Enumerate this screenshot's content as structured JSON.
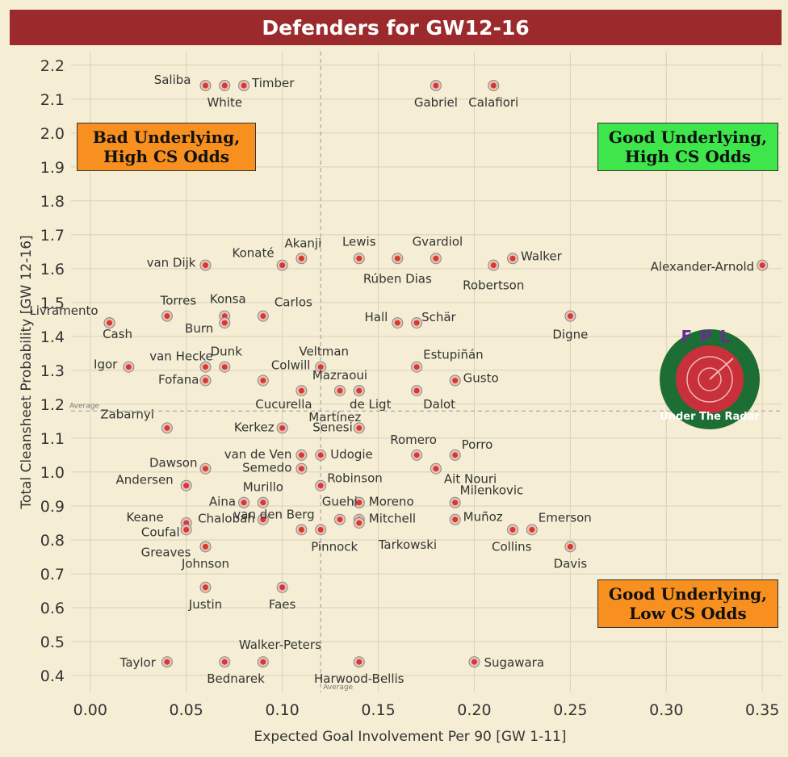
{
  "title": "Defenders for GW12-16",
  "callouts": {
    "bad_high": [
      "Bad Underlying,",
      "High CS Odds"
    ],
    "good_high": [
      "Good Underlying,",
      "High CS Odds"
    ],
    "good_low": [
      "Good Underlying,",
      "Low CS Odds"
    ]
  },
  "logo_text": "Under The Radar",
  "logo_letters": "FPL",
  "colors": {
    "title_bg": "#9c2a2c",
    "point": "#d8392f",
    "orange": "#f7901e",
    "green": "#3ee64c"
  },
  "chart_data": {
    "type": "scatter",
    "title": "Defenders for GW12-16",
    "xlabel": "Expected Goal Involvement Per 90 [GW 1-11]",
    "ylabel": "Total Cleansheet Probability [GW 12-16]",
    "xlim": [
      -0.01,
      0.36
    ],
    "ylim": [
      0.35,
      2.24
    ],
    "xticks": [
      "0.00",
      "0.05",
      "0.10",
      "0.15",
      "0.20",
      "0.25",
      "0.30",
      "0.35"
    ],
    "yticks": [
      "0.4",
      "0.5",
      "0.6",
      "0.7",
      "0.8",
      "0.9",
      "1.0",
      "1.1",
      "1.2",
      "1.3",
      "1.4",
      "1.5",
      "1.6",
      "1.7",
      "1.8",
      "1.9",
      "2.0",
      "2.1",
      "2.2"
    ],
    "average_x": 0.12,
    "average_y": 1.18,
    "average_label": "Average",
    "points": [
      {
        "name": "Saliba",
        "x": 0.06,
        "y": 2.14
      },
      {
        "name": "White",
        "x": 0.07,
        "y": 2.14
      },
      {
        "name": "Timber",
        "x": 0.08,
        "y": 2.14
      },
      {
        "name": "Gabriel",
        "x": 0.18,
        "y": 2.14
      },
      {
        "name": "Calafiori",
        "x": 0.21,
        "y": 2.14
      },
      {
        "name": "van Dijk",
        "x": 0.06,
        "y": 1.61
      },
      {
        "name": "Konaté",
        "x": 0.1,
        "y": 1.61
      },
      {
        "name": "Akanji",
        "x": 0.11,
        "y": 1.63
      },
      {
        "name": "Lewis",
        "x": 0.14,
        "y": 1.63
      },
      {
        "name": "Rúben Dias",
        "x": 0.16,
        "y": 1.63
      },
      {
        "name": "Gvardiol",
        "x": 0.18,
        "y": 1.63
      },
      {
        "name": "Robertson",
        "x": 0.21,
        "y": 1.61
      },
      {
        "name": "Walker",
        "x": 0.22,
        "y": 1.63
      },
      {
        "name": "Alexander-Arnold",
        "x": 0.35,
        "y": 1.61
      },
      {
        "name": "Livramento",
        "x": 0.01,
        "y": 1.44
      },
      {
        "name": "Cash",
        "x": 0.01,
        "y": 1.44
      },
      {
        "name": "Torres",
        "x": 0.04,
        "y": 1.46
      },
      {
        "name": "Konsa",
        "x": 0.07,
        "y": 1.46
      },
      {
        "name": "Burn",
        "x": 0.07,
        "y": 1.44
      },
      {
        "name": "Carlos",
        "x": 0.09,
        "y": 1.46
      },
      {
        "name": "Hall",
        "x": 0.16,
        "y": 1.44
      },
      {
        "name": "Schär",
        "x": 0.17,
        "y": 1.44
      },
      {
        "name": "Digne",
        "x": 0.25,
        "y": 1.46
      },
      {
        "name": "Igor",
        "x": 0.02,
        "y": 1.31
      },
      {
        "name": "van Hecke",
        "x": 0.06,
        "y": 1.31
      },
      {
        "name": "Dunk",
        "x": 0.07,
        "y": 1.31
      },
      {
        "name": "Fofana",
        "x": 0.06,
        "y": 1.27
      },
      {
        "name": "Colwill",
        "x": 0.09,
        "y": 1.27
      },
      {
        "name": "Veltman",
        "x": 0.12,
        "y": 1.31
      },
      {
        "name": "Cucurella",
        "x": 0.11,
        "y": 1.24
      },
      {
        "name": "Mazraoui",
        "x": 0.13,
        "y": 1.24
      },
      {
        "name": "Martínez",
        "x": 0.14,
        "y": 1.24
      },
      {
        "name": "de Ligt",
        "x": 0.14,
        "y": 1.24
      },
      {
        "name": "Estupiñán",
        "x": 0.17,
        "y": 1.31
      },
      {
        "name": "Dalot",
        "x": 0.17,
        "y": 1.24
      },
      {
        "name": "Gusto",
        "x": 0.19,
        "y": 1.27
      },
      {
        "name": "Zabarnyi",
        "x": 0.04,
        "y": 1.13
      },
      {
        "name": "Kerkez",
        "x": 0.1,
        "y": 1.13
      },
      {
        "name": "Senesi",
        "x": 0.14,
        "y": 1.13
      },
      {
        "name": "van de Ven",
        "x": 0.11,
        "y": 1.05
      },
      {
        "name": "Udogie",
        "x": 0.12,
        "y": 1.05
      },
      {
        "name": "Semedo",
        "x": 0.11,
        "y": 1.01
      },
      {
        "name": "Dawson",
        "x": 0.06,
        "y": 1.01
      },
      {
        "name": "Romero",
        "x": 0.17,
        "y": 1.05
      },
      {
        "name": "Porro",
        "x": 0.19,
        "y": 1.05
      },
      {
        "name": "Ait Nouri",
        "x": 0.18,
        "y": 1.01
      },
      {
        "name": "Andersen",
        "x": 0.05,
        "y": 0.96
      },
      {
        "name": "Robinson",
        "x": 0.12,
        "y": 0.96
      },
      {
        "name": "Murillo",
        "x": 0.09,
        "y": 0.91
      },
      {
        "name": "Aina",
        "x": 0.08,
        "y": 0.91
      },
      {
        "name": "Guehi",
        "x": 0.14,
        "y": 0.91
      },
      {
        "name": "Moreno",
        "x": 0.14,
        "y": 0.91
      },
      {
        "name": "Milenkovic",
        "x": 0.19,
        "y": 0.91
      },
      {
        "name": "Keane",
        "x": 0.05,
        "y": 0.85
      },
      {
        "name": "Coufal",
        "x": 0.05,
        "y": 0.83
      },
      {
        "name": "Chalobah",
        "x": 0.09,
        "y": 0.86
      },
      {
        "name": "Mitchell",
        "x": 0.14,
        "y": 0.86
      },
      {
        "name": "Tarkowski",
        "x": 0.14,
        "y": 0.85
      },
      {
        "name": "Pinnock",
        "x": 0.12,
        "y": 0.83
      },
      {
        "name": "van den Berg",
        "x": 0.11,
        "y": 0.83
      },
      {
        "name": "Muñoz",
        "x": 0.19,
        "y": 0.86
      },
      {
        "name": "Emerson",
        "x": 0.23,
        "y": 0.83
      },
      {
        "name": "Collins",
        "x": 0.22,
        "y": 0.83
      },
      {
        "name": "Greaves",
        "x": 0.06,
        "y": 0.78
      },
      {
        "name": "Johnson",
        "x": 0.06,
        "y": 0.78
      },
      {
        "name": "Davis",
        "x": 0.25,
        "y": 0.78
      },
      {
        "name": "Justin",
        "x": 0.06,
        "y": 0.66
      },
      {
        "name": "Faes",
        "x": 0.1,
        "y": 0.66
      },
      {
        "name": "Taylor",
        "x": 0.04,
        "y": 0.44
      },
      {
        "name": "Bednarek",
        "x": 0.07,
        "y": 0.44
      },
      {
        "name": "Walker-Peters",
        "x": 0.09,
        "y": 0.44
      },
      {
        "name": "Harwood-Bellis",
        "x": 0.14,
        "y": 0.44
      },
      {
        "name": "Sugawara",
        "x": 0.2,
        "y": 0.44
      },
      {
        "name": "",
        "x": 0.13,
        "y": 0.86
      }
    ]
  }
}
